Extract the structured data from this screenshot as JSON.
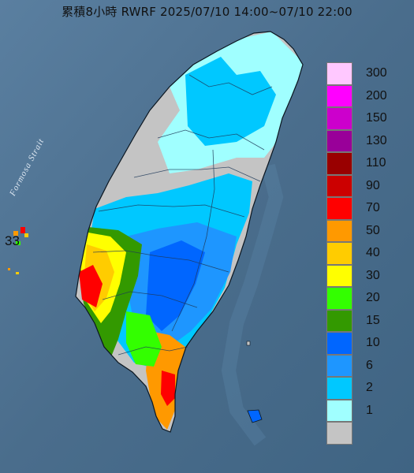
{
  "title": "累積8小時 RWRF 2025/07/10 14:00~07/10 22:00",
  "strait_label": "Formosa Strait",
  "station_value": "33",
  "colors": {
    "ocean": "#4d6f8e",
    "land_background": "#c4c4c4"
  },
  "legend": [
    {
      "label": "300",
      "color": "#ffc8ff"
    },
    {
      "label": "200",
      "color": "#ff00ff"
    },
    {
      "label": "150",
      "color": "#cc00cc"
    },
    {
      "label": "130",
      "color": "#990099"
    },
    {
      "label": "110",
      "color": "#990000"
    },
    {
      "label": "90",
      "color": "#cc0000"
    },
    {
      "label": "70",
      "color": "#ff0000"
    },
    {
      "label": "50",
      "color": "#ff9900"
    },
    {
      "label": "40",
      "color": "#ffcc00"
    },
    {
      "label": "30",
      "color": "#ffff00"
    },
    {
      "label": "20",
      "color": "#33ff00"
    },
    {
      "label": "15",
      "color": "#339900"
    },
    {
      "label": "10",
      "color": "#0066ff"
    },
    {
      "label": "6",
      "color": "#1e96ff"
    },
    {
      "label": "2",
      "color": "#00c8ff"
    },
    {
      "label": "1",
      "color": "#a0ffff"
    },
    {
      "label": "",
      "color": "#c4c4c4"
    }
  ]
}
